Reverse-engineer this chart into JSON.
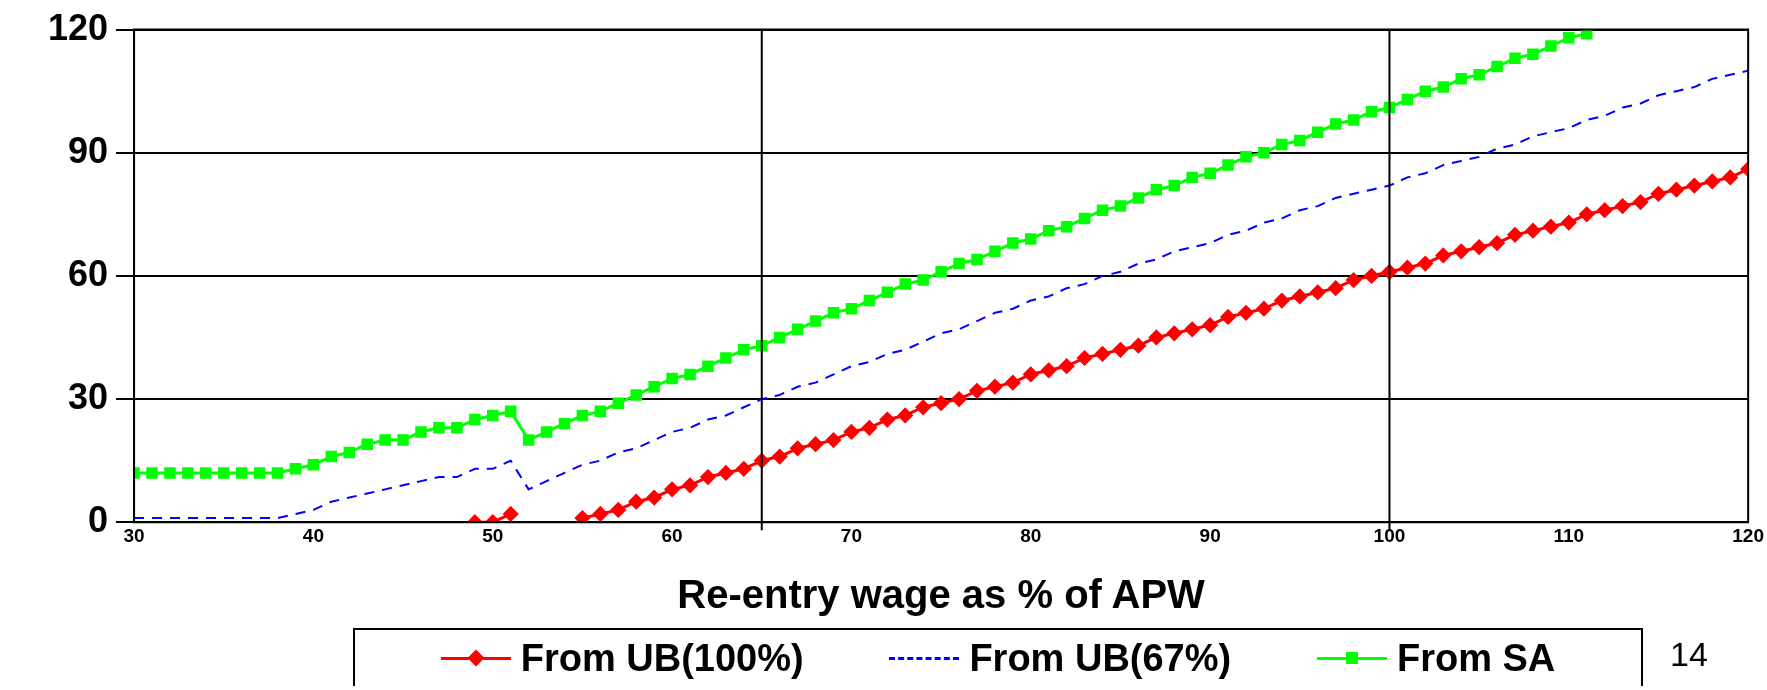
{
  "chart_data": {
    "type": "line",
    "xlabel": "Re-entry wage as % of APW",
    "x": [
      30,
      31,
      32,
      33,
      34,
      35,
      36,
      37,
      38,
      39,
      40,
      41,
      42,
      43,
      44,
      45,
      46,
      47,
      48,
      49,
      50,
      51,
      52,
      53,
      54,
      55,
      56,
      57,
      58,
      59,
      60,
      61,
      62,
      63,
      64,
      65,
      66,
      67,
      68,
      69,
      70,
      71,
      72,
      73,
      74,
      75,
      76,
      77,
      78,
      79,
      80,
      81,
      82,
      83,
      84,
      85,
      86,
      87,
      88,
      89,
      90,
      91,
      92,
      93,
      94,
      95,
      96,
      97,
      98,
      99,
      100,
      101,
      102,
      103,
      104,
      105,
      106,
      107,
      108,
      109,
      110,
      111,
      112,
      113,
      114,
      115,
      116,
      117,
      118,
      119,
      120
    ],
    "series": [
      {
        "name": "From UB(100%)",
        "color": "#ff0000",
        "marker": "diamond",
        "line_style": "solid",
        "values": [
          null,
          null,
          null,
          null,
          null,
          null,
          null,
          null,
          null,
          null,
          null,
          null,
          null,
          null,
          null,
          null,
          null,
          null,
          null,
          0,
          0,
          2,
          null,
          null,
          null,
          1,
          2,
          3,
          5,
          6,
          8,
          9,
          11,
          12,
          13,
          15,
          16,
          18,
          19,
          20,
          22,
          23,
          25,
          26,
          28,
          29,
          30,
          32,
          33,
          34,
          36,
          37,
          38,
          40,
          41,
          42,
          43,
          45,
          46,
          47,
          48,
          50,
          51,
          52,
          54,
          55,
          56,
          57,
          59,
          60,
          61,
          62,
          63,
          65,
          66,
          67,
          68,
          70,
          71,
          72,
          73,
          75,
          76,
          77,
          78,
          80,
          81,
          82,
          83,
          84,
          86
        ]
      },
      {
        "name": "From UB(67%)",
        "color": "#0000ff",
        "marker": "none",
        "line_style": "dashed",
        "values": [
          1,
          1,
          1,
          1,
          1,
          1,
          1,
          1,
          1,
          2,
          3,
          5,
          6,
          7,
          8,
          9,
          10,
          11,
          11,
          13,
          13,
          15,
          8,
          10,
          12,
          14,
          15,
          17,
          18,
          20,
          22,
          23,
          25,
          26,
          28,
          30,
          31,
          33,
          34,
          36,
          38,
          39,
          41,
          42,
          44,
          46,
          47,
          49,
          51,
          52,
          54,
          55,
          57,
          58,
          60,
          61,
          63,
          64,
          66,
          67,
          68,
          70,
          71,
          73,
          74,
          76,
          77,
          79,
          80,
          81,
          82,
          84,
          85,
          87,
          88,
          89,
          91,
          92,
          94,
          95,
          96,
          98,
          99,
          101,
          102,
          104,
          105,
          106,
          108,
          109,
          110
        ]
      },
      {
        "name": "From SA",
        "color": "#00ff00",
        "marker": "square",
        "line_style": "solid",
        "values": [
          12,
          12,
          12,
          12,
          12,
          12,
          12,
          12,
          12,
          13,
          14,
          16,
          17,
          19,
          20,
          20,
          22,
          23,
          23,
          25,
          26,
          27,
          20,
          22,
          24,
          26,
          27,
          29,
          31,
          33,
          35,
          36,
          38,
          40,
          42,
          43,
          45,
          47,
          49,
          51,
          52,
          54,
          56,
          58,
          59,
          61,
          63,
          64,
          66,
          68,
          69,
          71,
          72,
          74,
          76,
          77,
          79,
          81,
          82,
          84,
          85,
          87,
          89,
          90,
          92,
          93,
          95,
          97,
          98,
          100,
          101,
          103,
          105,
          106,
          108,
          109,
          111,
          113,
          114,
          116,
          118,
          119,
          null,
          null,
          null,
          null,
          null,
          null,
          null,
          null,
          null
        ]
      }
    ],
    "xlim": [
      30,
      120
    ],
    "xticks": [
      30,
      40,
      50,
      60,
      70,
      80,
      90,
      100,
      110,
      120
    ],
    "ylim": [
      0,
      120
    ],
    "yticks": [
      0,
      30,
      60,
      90,
      120
    ],
    "grid": "y",
    "legend": "bottom",
    "ref_lines": [
      {
        "axis": "x",
        "value": 65,
        "color": "#000000"
      },
      {
        "axis": "x",
        "value": 100,
        "color": "#000000"
      }
    ],
    "annotations": [
      "14"
    ]
  }
}
